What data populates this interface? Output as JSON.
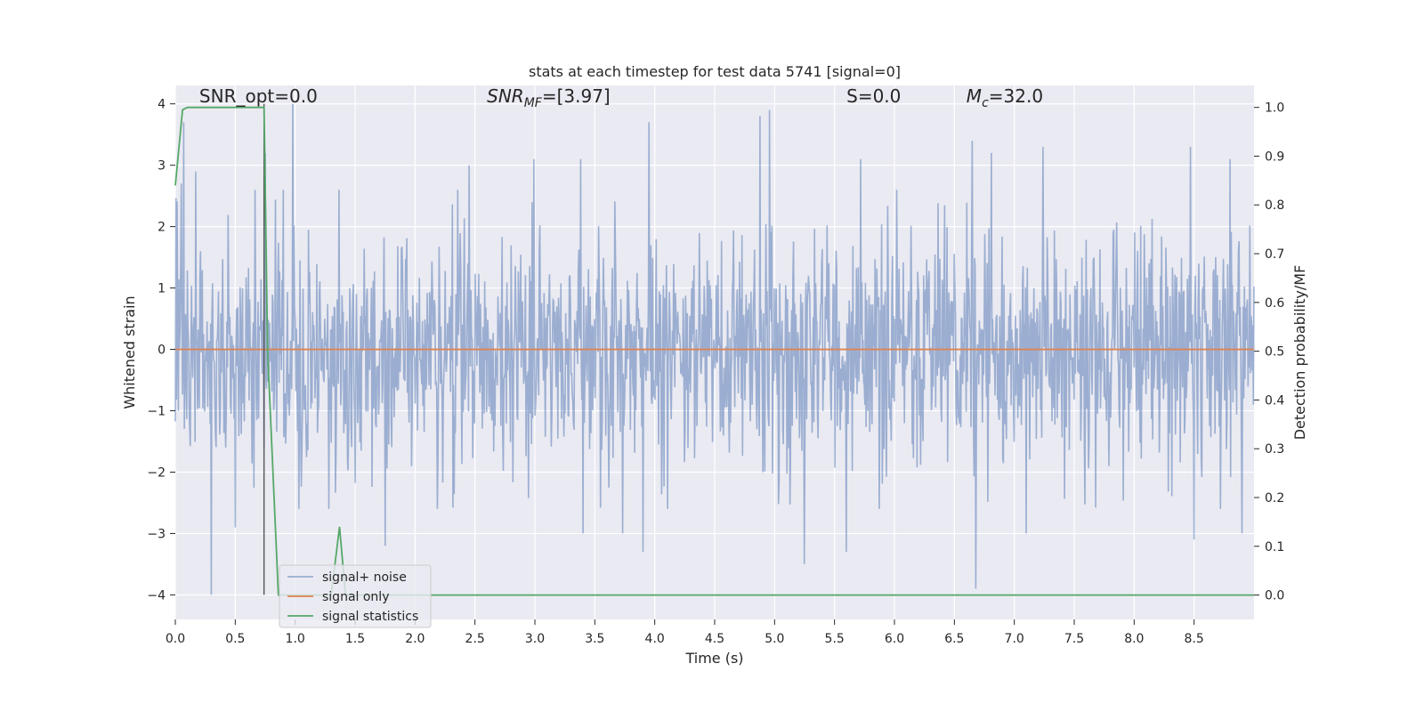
{
  "chart_data": {
    "type": "line",
    "title": "stats at each timestep for test data 5741 [signal=0]",
    "xlabel": "Time (s)",
    "ylabel": "Whitened strain",
    "ylabel_right": "Detection probability/MF",
    "xlim": [
      0,
      9.0
    ],
    "ylim": [
      -4.4,
      4.3
    ],
    "ylim_right": [
      -0.05,
      1.045
    ],
    "x_ticks": [
      0.0,
      0.5,
      1.0,
      1.5,
      2.0,
      2.5,
      3.0,
      3.5,
      4.0,
      4.5,
      5.0,
      5.5,
      6.0,
      6.5,
      7.0,
      7.5,
      8.0,
      8.5
    ],
    "x_tick_labels": [
      "0.0",
      "0.5",
      "1.0",
      "1.5",
      "2.0",
      "2.5",
      "3.0",
      "3.5",
      "4.0",
      "4.5",
      "5.0",
      "5.5",
      "6.0",
      "6.5",
      "7.0",
      "7.5",
      "8.0",
      "8.5"
    ],
    "y_ticks": [
      -4,
      -3,
      -2,
      -1,
      0,
      1,
      2,
      3,
      4
    ],
    "y_tick_labels": [
      "−4",
      "−3",
      "−2",
      "−1",
      "0",
      "1",
      "2",
      "3",
      "4"
    ],
    "y_right_ticks": [
      0.0,
      0.1,
      0.2,
      0.3,
      0.4,
      0.5,
      0.6,
      0.7,
      0.8,
      0.9,
      1.0
    ],
    "y_right_tick_labels": [
      "0.0",
      "0.1",
      "0.2",
      "0.3",
      "0.4",
      "0.5",
      "0.6",
      "0.7",
      "0.8",
      "0.9",
      "1.0"
    ],
    "grid": true,
    "legend_position": "lower-left",
    "annotations": [
      {
        "text": "SNR_opt=0.0",
        "x": 0.2,
        "y": 4.1
      },
      {
        "text": "SNR_MF=[3.97]",
        "x": 2.6,
        "y": 4.1
      },
      {
        "text": "S=0.0",
        "x": 5.6,
        "y": 4.1
      },
      {
        "text": "M_c=32.0",
        "x": 6.6,
        "y": 4.1
      }
    ],
    "vline": {
      "x": 0.74,
      "y_range": [
        -4,
        4
      ]
    },
    "series": [
      {
        "name": "signal+ noise",
        "axis": "left",
        "color": "#4c72b0",
        "opacity": 0.5,
        "description": "whitened noise, amplitude ~1-2, peaks up to about 4",
        "peaks_high": [
          [
            0.05,
            2.7
          ],
          [
            0.07,
            3.7
          ],
          [
            0.17,
            2.9
          ],
          [
            0.75,
            3.2
          ],
          [
            0.98,
            4.0
          ],
          [
            1.28,
            3.3
          ],
          [
            2.45,
            3.0
          ],
          [
            2.99,
            3.1
          ],
          [
            3.38,
            3.1
          ],
          [
            3.95,
            3.7
          ],
          [
            4.88,
            3.8
          ],
          [
            4.96,
            3.9
          ],
          [
            5.72,
            3.1
          ],
          [
            6.65,
            3.4
          ],
          [
            6.81,
            3.2
          ],
          [
            7.24,
            3.3
          ],
          [
            8.47,
            3.3
          ],
          [
            8.8,
            3.1
          ]
        ],
        "peaks_low": [
          [
            0.3,
            -4.0
          ],
          [
            0.5,
            -2.9
          ],
          [
            1.28,
            -2.6
          ],
          [
            1.75,
            -3.2
          ],
          [
            3.4,
            -3.0
          ],
          [
            3.73,
            -3.0
          ],
          [
            3.9,
            -3.3
          ],
          [
            5.25,
            -3.5
          ],
          [
            5.6,
            -3.3
          ],
          [
            6.68,
            -3.9
          ],
          [
            7.1,
            -3.0
          ],
          [
            8.5,
            -3.1
          ],
          [
            8.9,
            -3.0
          ]
        ]
      },
      {
        "name": "signal only",
        "axis": "left",
        "color": "#dd8452",
        "x": [
          0.0,
          9.0
        ],
        "y": [
          0.0,
          0.0
        ]
      },
      {
        "name": "signal statistics",
        "axis": "right",
        "color": "#55a868",
        "x": [
          0.0,
          0.06,
          0.1,
          0.15,
          0.7,
          0.74,
          0.77,
          0.86,
          0.88,
          1.0,
          1.3,
          1.37,
          1.42,
          1.5,
          9.0
        ],
        "y": [
          0.84,
          0.995,
          1.0,
          1.0,
          1.0,
          1.0,
          0.5,
          0.0,
          0.0,
          0.0,
          0.0,
          0.14,
          0.0,
          0.0,
          0.0
        ]
      }
    ]
  }
}
